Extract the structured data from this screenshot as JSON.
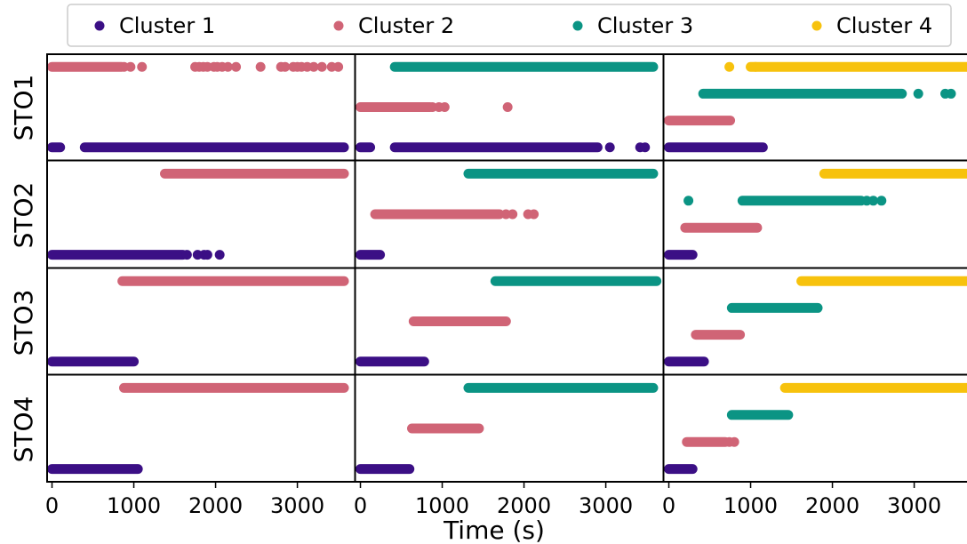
{
  "chart_data": {
    "type": "scatter",
    "xlabel": "Time (s)",
    "xlim": [
      -60,
      3700
    ],
    "xticks": [
      0,
      1000,
      2000,
      3000
    ],
    "xtick_labels": [
      "0",
      "1000",
      "2000",
      "3000"
    ],
    "row_labels": [
      "STO1",
      "STO2",
      "STO3",
      "STO4"
    ],
    "legend": {
      "placement": "top",
      "entries": [
        {
          "label": "Cluster 1",
          "color": "#3b0f85"
        },
        {
          "label": "Cluster 2",
          "color": "#d06476"
        },
        {
          "label": "Cluster 3",
          "color": "#0b9484"
        },
        {
          "label": "Cluster 4",
          "color": "#f7c20d"
        }
      ]
    },
    "series_colors": {
      "1": "#3b0f85",
      "2": "#d06476",
      "3": "#0b9484",
      "4": "#f7c20d"
    },
    "levels": {
      "1": [
        1
      ],
      "2": [
        1,
        2
      ],
      "3": [
        1,
        2,
        3
      ],
      "4": [
        1,
        2,
        3,
        4
      ]
    },
    "panels": [
      {
        "row": 0,
        "col": 0,
        "n_clusters": 2,
        "series": [
          {
            "cluster": 1,
            "level": 1,
            "segments": [
              [
                0,
                100
              ],
              [
                400,
                3570
              ]
            ],
            "points": []
          },
          {
            "cluster": 2,
            "level": 2,
            "segments": [
              [
                0,
                850
              ]
            ],
            "points": [
              880,
              960,
              1100,
              1750,
              1800,
              1850,
              1900,
              1980,
              2020,
              2080,
              2150,
              2250,
              2550,
              2800,
              2850,
              2950,
              3000,
              3050,
              3120,
              3200,
              3300,
              3420,
              3500
            ]
          }
        ]
      },
      {
        "row": 0,
        "col": 1,
        "n_clusters": 3,
        "series": [
          {
            "cluster": 1,
            "level": 1,
            "segments": [
              [
                0,
                120
              ],
              [
                420,
                2900
              ]
            ],
            "points": [
              3050,
              3420,
              3480
            ]
          },
          {
            "cluster": 2,
            "level": 2,
            "segments": [
              [
                0,
                850
              ]
            ],
            "points": [
              880,
              960,
              1030,
              1800
            ]
          },
          {
            "cluster": 3,
            "level": 3,
            "segments": [
              [
                420,
                3580
              ]
            ],
            "points": []
          }
        ]
      },
      {
        "row": 0,
        "col": 2,
        "n_clusters": 4,
        "series": [
          {
            "cluster": 1,
            "level": 1,
            "segments": [
              [
                0,
                1150
              ]
            ],
            "points": []
          },
          {
            "cluster": 2,
            "level": 2,
            "segments": [
              [
                0,
                750
              ]
            ],
            "points": []
          },
          {
            "cluster": 3,
            "level": 3,
            "segments": [
              [
                420,
                2850
              ]
            ],
            "points": [
              3050,
              3380,
              3450
            ]
          },
          {
            "cluster": 4,
            "level": 4,
            "segments": [
              [
                1000,
                3700
              ]
            ],
            "points": [
              740,
              1060
            ]
          }
        ]
      },
      {
        "row": 1,
        "col": 0,
        "n_clusters": 2,
        "series": [
          {
            "cluster": 1,
            "level": 1,
            "segments": [
              [
                0,
                1600
              ]
            ],
            "points": [
              1650,
              1780,
              1860,
              1900,
              2050
            ]
          },
          {
            "cluster": 2,
            "level": 2,
            "segments": [
              [
                1380,
                3570
              ]
            ],
            "points": []
          }
        ]
      },
      {
        "row": 1,
        "col": 1,
        "n_clusters": 3,
        "series": [
          {
            "cluster": 1,
            "level": 1,
            "segments": [
              [
                0,
                240
              ]
            ],
            "points": []
          },
          {
            "cluster": 2,
            "level": 2,
            "segments": [
              [
                180,
                1700
              ]
            ],
            "points": [
              1780,
              1860,
              2050,
              2120
            ]
          },
          {
            "cluster": 3,
            "level": 3,
            "segments": [
              [
                1320,
                3580
              ]
            ],
            "points": []
          }
        ]
      },
      {
        "row": 1,
        "col": 2,
        "n_clusters": 4,
        "series": [
          {
            "cluster": 1,
            "level": 1,
            "segments": [
              [
                0,
                290
              ]
            ],
            "points": []
          },
          {
            "cluster": 2,
            "level": 2,
            "segments": [
              [
                200,
                1080
              ]
            ],
            "points": []
          },
          {
            "cluster": 3,
            "level": 3,
            "segments": [
              [
                900,
                2350
              ]
            ],
            "points": [
              240,
              2420,
              2500,
              2600
            ]
          },
          {
            "cluster": 4,
            "level": 4,
            "segments": [
              [
                1900,
                3700
              ]
            ],
            "points": []
          }
        ]
      },
      {
        "row": 2,
        "col": 0,
        "n_clusters": 2,
        "series": [
          {
            "cluster": 1,
            "level": 1,
            "segments": [
              [
                0,
                1000
              ]
            ],
            "points": []
          },
          {
            "cluster": 2,
            "level": 2,
            "segments": [
              [
                860,
                3570
              ]
            ],
            "points": []
          }
        ]
      },
      {
        "row": 2,
        "col": 1,
        "n_clusters": 3,
        "series": [
          {
            "cluster": 1,
            "level": 1,
            "segments": [
              [
                0,
                780
              ]
            ],
            "points": []
          },
          {
            "cluster": 2,
            "level": 2,
            "segments": [
              [
                650,
                1780
              ]
            ],
            "points": []
          },
          {
            "cluster": 3,
            "level": 3,
            "segments": [
              [
                1650,
                3620
              ]
            ],
            "points": []
          }
        ]
      },
      {
        "row": 2,
        "col": 2,
        "n_clusters": 4,
        "series": [
          {
            "cluster": 1,
            "level": 1,
            "segments": [
              [
                0,
                430
              ]
            ],
            "points": []
          },
          {
            "cluster": 2,
            "level": 2,
            "segments": [
              [
                330,
                870
              ]
            ],
            "points": []
          },
          {
            "cluster": 3,
            "level": 3,
            "segments": [
              [
                770,
                1820
              ]
            ],
            "points": []
          },
          {
            "cluster": 4,
            "level": 4,
            "segments": [
              [
                1620,
                3700
              ]
            ],
            "points": []
          }
        ]
      },
      {
        "row": 3,
        "col": 0,
        "n_clusters": 2,
        "series": [
          {
            "cluster": 1,
            "level": 1,
            "segments": [
              [
                0,
                1050
              ]
            ],
            "points": []
          },
          {
            "cluster": 2,
            "level": 2,
            "segments": [
              [
                880,
                3570
              ]
            ],
            "points": []
          }
        ]
      },
      {
        "row": 3,
        "col": 1,
        "n_clusters": 3,
        "series": [
          {
            "cluster": 1,
            "level": 1,
            "segments": [
              [
                0,
                600
              ]
            ],
            "points": []
          },
          {
            "cluster": 2,
            "level": 2,
            "segments": [
              [
                630,
                1450
              ]
            ],
            "points": []
          },
          {
            "cluster": 3,
            "level": 3,
            "segments": [
              [
                1320,
                3580
              ]
            ],
            "points": []
          }
        ]
      },
      {
        "row": 3,
        "col": 2,
        "n_clusters": 4,
        "series": [
          {
            "cluster": 1,
            "level": 1,
            "segments": [
              [
                0,
                290
              ]
            ],
            "points": []
          },
          {
            "cluster": 2,
            "level": 2,
            "segments": [
              [
                220,
                690
              ]
            ],
            "points": [
              740,
              800
            ]
          },
          {
            "cluster": 3,
            "level": 3,
            "segments": [
              [
                770,
                1460
              ]
            ],
            "points": []
          },
          {
            "cluster": 4,
            "level": 4,
            "segments": [
              [
                1420,
                3700
              ]
            ],
            "points": []
          }
        ]
      }
    ]
  }
}
